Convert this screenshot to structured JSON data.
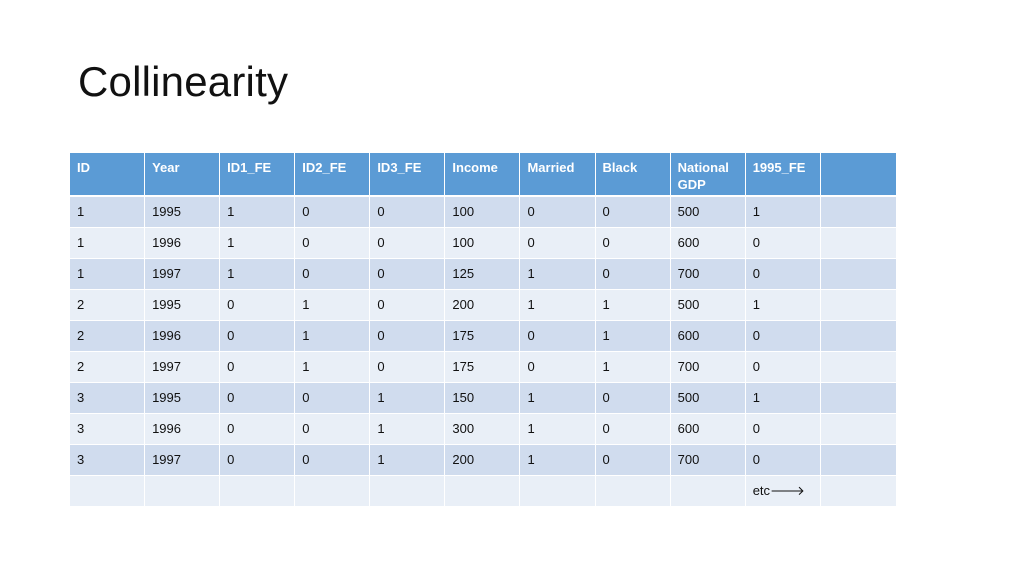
{
  "slide": {
    "title": "Collinearity"
  },
  "table": {
    "headers": [
      "ID",
      "Year",
      "ID1_FE",
      "ID2_FE",
      "ID3_FE",
      "Income",
      "Married",
      "Black",
      "National GDP",
      "1995_FE",
      ""
    ],
    "rows": [
      [
        "1",
        "1995",
        "1",
        "0",
        "0",
        "100",
        "0",
        "0",
        "500",
        "1",
        ""
      ],
      [
        "1",
        "1996",
        "1",
        "0",
        "0",
        "100",
        "0",
        "0",
        "600",
        "0",
        ""
      ],
      [
        "1",
        "1997",
        "1",
        "0",
        "0",
        "125",
        "1",
        "0",
        "700",
        "0",
        ""
      ],
      [
        "2",
        "1995",
        "0",
        "1",
        "0",
        "200",
        "1",
        "1",
        "500",
        "1",
        ""
      ],
      [
        "2",
        "1996",
        "0",
        "1",
        "0",
        "175",
        "0",
        "1",
        "600",
        "0",
        ""
      ],
      [
        "2",
        "1997",
        "0",
        "1",
        "0",
        "175",
        "0",
        "1",
        "700",
        "0",
        ""
      ],
      [
        "3",
        "1995",
        "0",
        "0",
        "1",
        "150",
        "1",
        "0",
        "500",
        "1",
        ""
      ],
      [
        "3",
        "1996",
        "0",
        "0",
        "1",
        "300",
        "1",
        "0",
        "600",
        "0",
        ""
      ],
      [
        "3",
        "1997",
        "0",
        "0",
        "1",
        "200",
        "1",
        "0",
        "700",
        "0",
        ""
      ],
      [
        "",
        "",
        "",
        "",
        "",
        "",
        "",
        "",
        "",
        "etc🡒",
        ""
      ]
    ]
  },
  "colors": {
    "header_bg": "#5b9bd5",
    "row_band_dark": "#d0dcee",
    "row_band_light": "#e9eff7"
  }
}
